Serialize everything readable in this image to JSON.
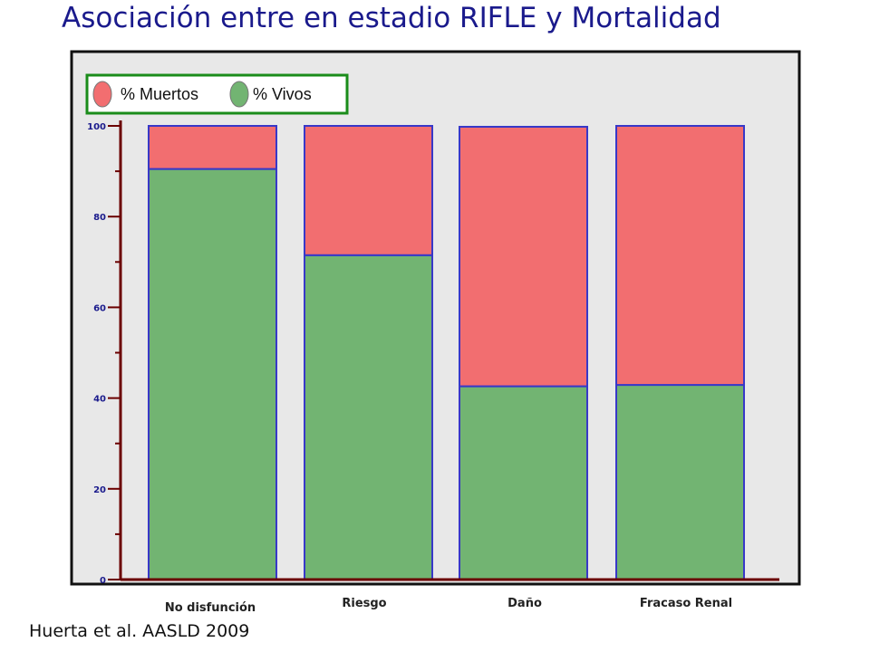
{
  "title": "Asociación entre en estadio RIFLE y Mortalidad",
  "citation": "Huerta et al. AASLD 2009",
  "colors": {
    "dead": "#f26e70",
    "alive": "#72b472",
    "bar_border": "#3838c8",
    "axis": "#6b0000",
    "plot_bg": "#e8e8e8",
    "legend_border": "#1a8c1a"
  },
  "chart_data": {
    "type": "bar",
    "stacked": true,
    "categories": [
      "No disfunción",
      "Riesgo",
      "Daño",
      "Fracaso Renal"
    ],
    "series": [
      {
        "name": "% Muertos",
        "color": "#f26e70",
        "values": [
          9.5,
          28.5,
          57.2,
          57.1
        ]
      },
      {
        "name": "% Vivos",
        "color": "#72b472",
        "values": [
          90.5,
          71.5,
          42.6,
          42.9
        ]
      }
    ],
    "yticks": [
      "0",
      "20",
      "40",
      "60",
      "80",
      "100"
    ],
    "ylim": [
      0,
      100
    ],
    "legend_position": "top-left",
    "grid": false
  }
}
